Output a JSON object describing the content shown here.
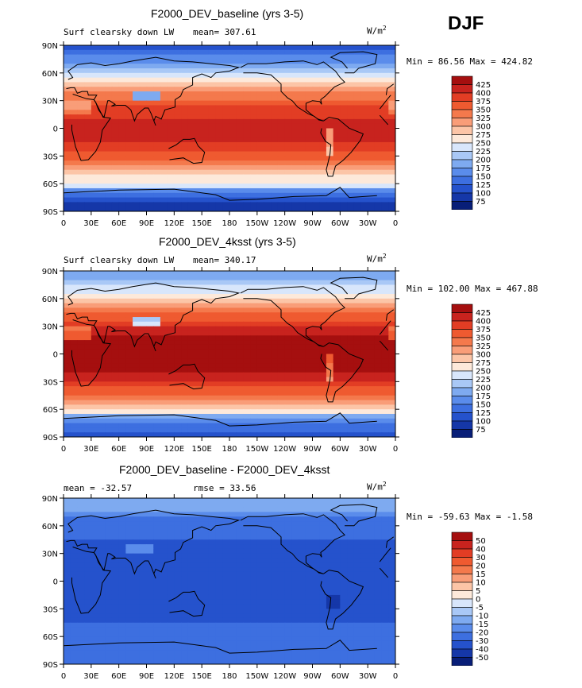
{
  "season": "DJF",
  "chart_data": [
    {
      "type": "heatmap",
      "title": "F2000_DEV_baseline (yrs 3-5)",
      "subtitle_left": "Surf clearsky down LW",
      "mean_text": "mean= 307.61",
      "units_base": "W/m",
      "units_exp": "2",
      "minmax_text": "Min =   86.56 Max = 424.82",
      "min": 86.56,
      "max": 424.82,
      "mean": 307.61,
      "xlabel": "",
      "ylabel": "",
      "xlim": [
        0,
        360
      ],
      "ylim": [
        -90,
        90
      ],
      "x_tick_labels": [
        "0",
        "30E",
        "60E",
        "90E",
        "120E",
        "150E",
        "180",
        "150W",
        "120W",
        "90W",
        "60W",
        "30W",
        "0"
      ],
      "y_tick_labels": [
        "90N",
        "60N",
        "30N",
        "0",
        "30S",
        "60S",
        "90S"
      ],
      "colorbar_levels": [
        "425",
        "400",
        "375",
        "350",
        "325",
        "300",
        "275",
        "250",
        "225",
        "200",
        "175",
        "150",
        "125",
        "100",
        "75"
      ],
      "colorbar_colors": [
        "#a50f0f",
        "#c8231e",
        "#e23d24",
        "#ef5a30",
        "#f4794c",
        "#f99d78",
        "#fcc5a7",
        "#fde9da",
        "#d8e6fb",
        "#a9c8f6",
        "#7eaaf0",
        "#5a8ceb",
        "#3d6fe0",
        "#2552cc",
        "#1537a8",
        "#081e78"
      ],
      "field": "baseline"
    },
    {
      "type": "heatmap",
      "title": "F2000_DEV_4ksst (yrs 3-5)",
      "subtitle_left": "Surf clearsky down LW",
      "mean_text": "mean= 340.17",
      "units_base": "W/m",
      "units_exp": "2",
      "minmax_text": "Min = 102.00 Max = 467.88",
      "min": 102.0,
      "max": 467.88,
      "mean": 340.17,
      "xlabel": "",
      "ylabel": "",
      "xlim": [
        0,
        360
      ],
      "ylim": [
        -90,
        90
      ],
      "x_tick_labels": [
        "0",
        "30E",
        "60E",
        "90E",
        "120E",
        "150E",
        "180",
        "150W",
        "120W",
        "90W",
        "60W",
        "30W",
        "0"
      ],
      "y_tick_labels": [
        "90N",
        "60N",
        "30N",
        "0",
        "30S",
        "60S",
        "90S"
      ],
      "colorbar_levels": [
        "425",
        "400",
        "375",
        "350",
        "325",
        "300",
        "275",
        "250",
        "225",
        "200",
        "175",
        "150",
        "125",
        "100",
        "75"
      ],
      "colorbar_colors": [
        "#a50f0f",
        "#c8231e",
        "#e23d24",
        "#ef5a30",
        "#f4794c",
        "#f99d78",
        "#fcc5a7",
        "#fde9da",
        "#d8e6fb",
        "#a9c8f6",
        "#7eaaf0",
        "#5a8ceb",
        "#3d6fe0",
        "#2552cc",
        "#1537a8",
        "#081e78"
      ],
      "field": "4ksst"
    },
    {
      "type": "heatmap",
      "title": "F2000_DEV_baseline - F2000_DEV_4ksst",
      "subtitle_left": "mean = -32.57",
      "mean_text": "rmse =  33.56",
      "units_base": "W/m",
      "units_exp": "2",
      "minmax_text": "Min = -59.63 Max =  -1.58",
      "min": -59.63,
      "max": -1.58,
      "mean": -32.57,
      "rmse": 33.56,
      "xlabel": "",
      "ylabel": "",
      "xlim": [
        0,
        360
      ],
      "ylim": [
        -90,
        90
      ],
      "x_tick_labels": [
        "0",
        "30E",
        "60E",
        "90E",
        "120E",
        "150E",
        "180",
        "150W",
        "120W",
        "90W",
        "60W",
        "30W",
        "0"
      ],
      "y_tick_labels": [
        "90N",
        "60N",
        "30N",
        "0",
        "30S",
        "60S",
        "90S"
      ],
      "colorbar_levels": [
        "50",
        "40",
        "30",
        "20",
        "15",
        "10",
        "5",
        "0",
        "-5",
        "-10",
        "-15",
        "-20",
        "-30",
        "-40",
        "-50"
      ],
      "colorbar_colors": [
        "#a50f0f",
        "#c8231e",
        "#e23d24",
        "#ef5a30",
        "#f4794c",
        "#f99d78",
        "#fcc5a7",
        "#fde9da",
        "#d8e6fb",
        "#a9c8f6",
        "#7eaaf0",
        "#5a8ceb",
        "#3d6fe0",
        "#2552cc",
        "#1537a8",
        "#081e78"
      ],
      "field": "diff"
    }
  ]
}
